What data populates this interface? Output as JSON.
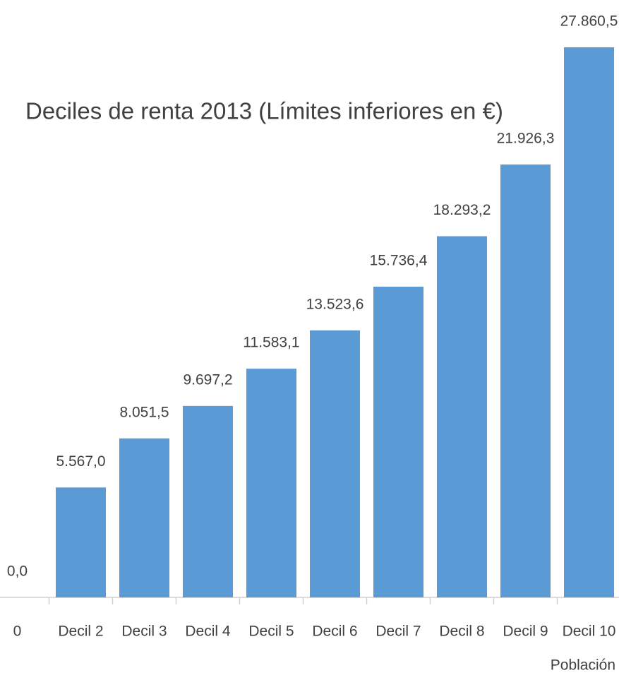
{
  "chart_data": {
    "type": "bar",
    "title": "Deciles de renta 2013 (Límites inferiores en €)",
    "x_label": "Población",
    "categories": [
      "0",
      "Decil 2",
      "Decil 3",
      "Decil 4",
      "Decil 5",
      "Decil 6",
      "Decil 7",
      "Decil 8",
      "Decil 9",
      "Decil 10"
    ],
    "values": [
      0,
      5567.0,
      8051.5,
      9697.2,
      11583.1,
      13523.6,
      15736.4,
      18293.2,
      21926.3,
      27860.5
    ],
    "value_labels": [
      "0,0",
      "5.567,0",
      "8.051,5",
      "9.697,2",
      "11.583,1",
      "13.523,6",
      "15.736,4",
      "18.293,2",
      "21.926,3",
      "27.860,5"
    ],
    "color": "#5b9bd5"
  }
}
